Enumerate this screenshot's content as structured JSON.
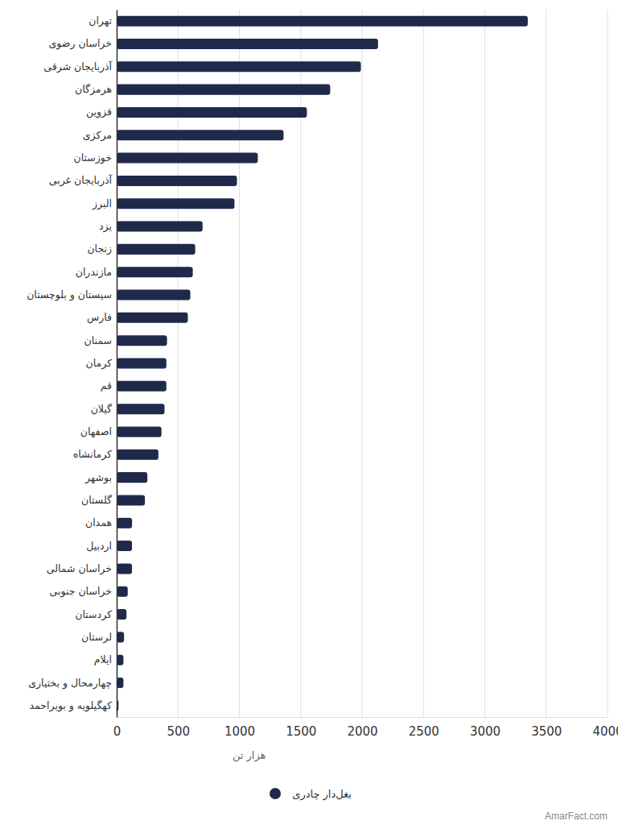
{
  "chart_data": {
    "type": "bar",
    "orientation": "horizontal",
    "categories": [
      "تهران",
      "خراسان رضوی",
      "آذربایجان شرقی",
      "هرمزگان",
      "قزوین",
      "مرکزی",
      "خوزستان",
      "آذربایجان غربی",
      "البرز",
      "یزد",
      "زنجان",
      "مازندران",
      "سیستان و بلوچستان",
      "فارس",
      "سمنان",
      "کرمان",
      "قم",
      "گیلان",
      "اصفهان",
      "کرمانشاه",
      "بوشهر",
      "گلستان",
      "همدان",
      "اردبیل",
      "خراسان شمالی",
      "خراسان جنوبی",
      "کردستان",
      "لرستان",
      "ایلام",
      "چهارمحال و بختیاری",
      "کهگیلویه و بویراحمد"
    ],
    "series": [
      {
        "name": "بغل‌دار چادری",
        "color": "#1f2a4b",
        "values": [
          3350,
          2130,
          1990,
          1740,
          1550,
          1360,
          1150,
          980,
          960,
          700,
          640,
          620,
          600,
          580,
          410,
          405,
          405,
          390,
          365,
          340,
          250,
          230,
          125,
          125,
          125,
          90,
          80,
          60,
          55,
          55,
          15
        ]
      }
    ],
    "x_label": "هزار تن",
    "xlim": [
      0,
      4000
    ],
    "xticks": [
      0,
      500,
      1000,
      1500,
      2000,
      2500,
      3000,
      3500,
      4000
    ],
    "grid": true,
    "legend": "bottom",
    "source": "AmarFact.com"
  }
}
